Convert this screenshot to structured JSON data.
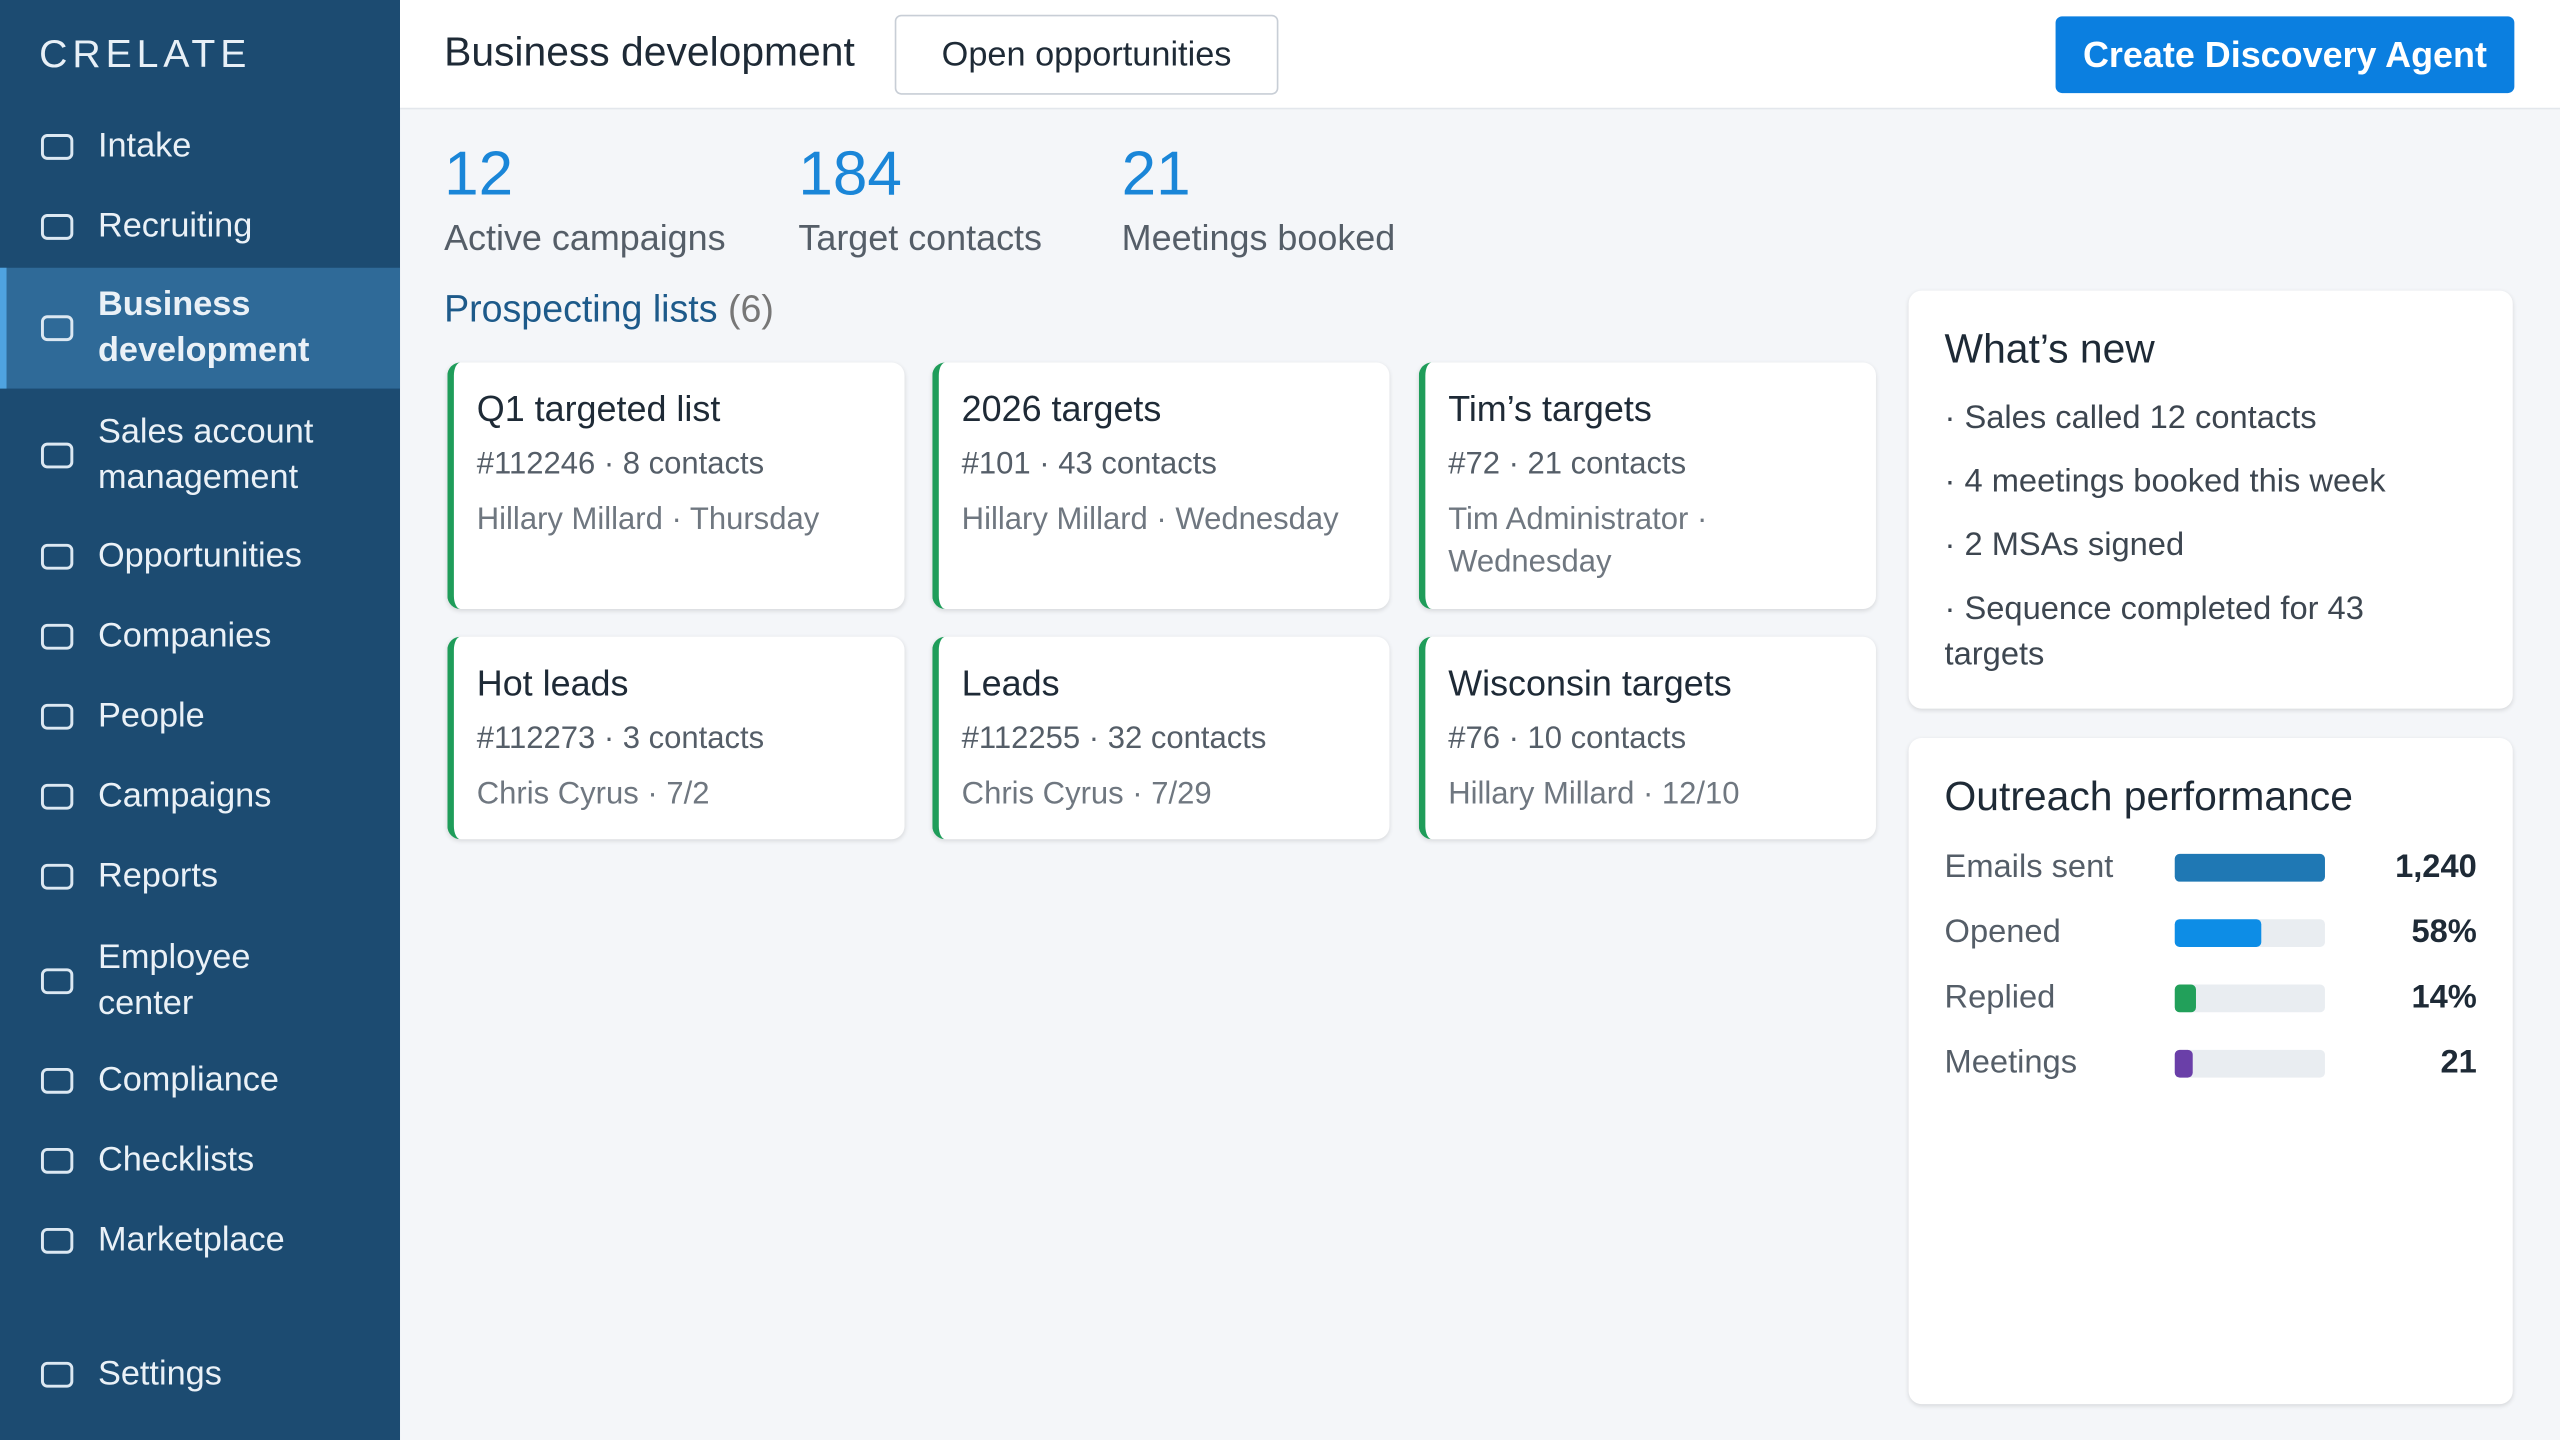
{
  "sidebar": {
    "logo": "CRELATE",
    "nav": [
      {
        "label": "Intake"
      },
      {
        "label": "Recruiting"
      },
      {
        "label": "Business development",
        "active": true
      },
      {
        "label": "Sales account management"
      },
      {
        "label": "Opportunities"
      },
      {
        "label": "Companies"
      },
      {
        "label": "People"
      },
      {
        "label": "Campaigns"
      },
      {
        "label": "Reports"
      },
      {
        "label": "Employee center"
      },
      {
        "label": "Compliance"
      },
      {
        "label": "Checklists"
      },
      {
        "label": "Marketplace"
      }
    ],
    "settings": "Settings"
  },
  "header": {
    "title": "Business development",
    "button": "Open opportunities",
    "primary_button": "Create Discovery Agent"
  },
  "stats": [
    {
      "value": 12,
      "label": "Active campaigns"
    },
    {
      "value": 184,
      "label": "Target contacts"
    },
    {
      "value": 21,
      "label": "Meetings booked"
    }
  ],
  "lists": {
    "title": "Prospecting lists",
    "count": "(6)",
    "cards": [
      {
        "title": "Q1 targeted list",
        "meta": "#112246 · 8 contacts",
        "owner": "Hillary Millard · Thursday"
      },
      {
        "title": "2026 targets",
        "meta": "#101 · 43 contacts",
        "owner": "Hillary Millard · Wednesday"
      },
      {
        "title": "Tim’s targets",
        "meta": "#72 · 21 contacts",
        "owner": "Tim Administrator · Wednesday"
      },
      {
        "title": "Hot leads",
        "meta": "#112273 · 3 contacts",
        "owner": "Chris Cyrus · 7/2"
      },
      {
        "title": "Leads",
        "meta": "#112255 · 32 contacts",
        "owner": "Chris Cyrus · 7/29"
      },
      {
        "title": "Wisconsin targets",
        "meta": "#76 · 10 contacts",
        "owner": "Hillary Millard · 12/10"
      }
    ]
  },
  "whats_new": {
    "title": "What’s new",
    "items": [
      "· Sales called 12 contacts",
      "· 4 meetings booked this week",
      "· 2 MSAs signed",
      "· Sequence completed for 43 targets"
    ]
  },
  "outreach": {
    "title": "Outreach performance",
    "metrics": [
      {
        "name": "Emails sent",
        "value": 1240,
        "value_label": "1,240",
        "color": "#1f78b4"
      },
      {
        "name": "Opened",
        "value": 58,
        "value_label": "58%",
        "color": "#0d8de6"
      },
      {
        "name": "Replied",
        "value": 14,
        "value_label": "14%",
        "color": "#22a05a"
      },
      {
        "name": "Meetings",
        "value": 21,
        "value_label": "21",
        "color": "#6a3fa8"
      }
    ]
  }
}
